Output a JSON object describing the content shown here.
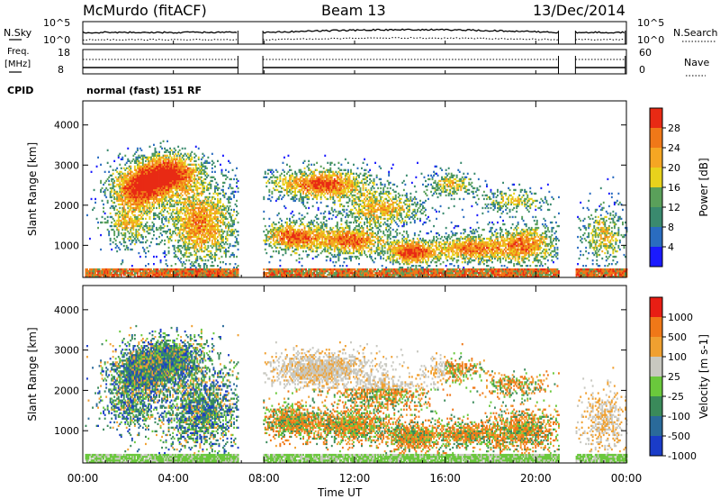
{
  "header": {
    "station": "McMurdo (fitACF)",
    "beam": "Beam 13",
    "date": "13/Dec/2014"
  },
  "noise_panel": {
    "left_label": "N.Sky",
    "left_ticks": [
      "10^5",
      "10^0"
    ],
    "right_label": "N.Search",
    "right_ticks": [
      "10^5",
      "10^0"
    ]
  },
  "freq_panel": {
    "left_label_1": "Freq.",
    "left_label_2": "[MHz]",
    "left_ticks": [
      "18",
      "8"
    ],
    "right_label": "Nave",
    "right_ticks": [
      "60",
      "0"
    ]
  },
  "cpid": {
    "label": "CPID",
    "value": "normal (fast) 151 RF"
  },
  "chart_data": [
    {
      "type": "heatmap",
      "panel": "power",
      "ylabel": "Slant Range [km]",
      "xlabel": "Time UT",
      "x_ticks": [
        "00:00",
        "04:00",
        "08:00",
        "12:00",
        "16:00",
        "20:00",
        "00:00"
      ],
      "y_ticks": [
        1000,
        2000,
        3000,
        4000
      ],
      "ylim": [
        200,
        4600
      ],
      "xlim_hours": [
        0,
        24
      ],
      "colorbar": {
        "label": "Power [dB]",
        "ticks": [
          4,
          8,
          12,
          16,
          20,
          24,
          28
        ],
        "range": [
          0,
          30
        ],
        "colors": [
          "#1a1aff",
          "#2a6cc0",
          "#3a8a6e",
          "#5aa05a",
          "#e8d21c",
          "#f5a623",
          "#f07818",
          "#e82a14"
        ]
      },
      "gaps_hours": [
        [
          6.85,
          7.95
        ],
        [
          21.0,
          21.75
        ]
      ]
    },
    {
      "type": "heatmap",
      "panel": "velocity",
      "ylabel": "Slant Range [km]",
      "xlabel": "Time UT",
      "x_ticks": [
        "00:00",
        "04:00",
        "08:00",
        "12:00",
        "16:00",
        "20:00",
        "00:00"
      ],
      "y_ticks": [
        1000,
        2000,
        3000,
        4000
      ],
      "ylim": [
        200,
        4600
      ],
      "xlim_hours": [
        0,
        24
      ],
      "colorbar": {
        "label": "Velocity [m s-1]",
        "tick_labels": [
          "1000",
          "500",
          "100",
          "25",
          "-25",
          "-100",
          "-500",
          "-1000"
        ],
        "colors": [
          "#1a3cc8",
          "#2a6a9a",
          "#3a8a5a",
          "#6ac83c",
          "#c8c8c0",
          "#f0a030",
          "#f07818",
          "#e81e14"
        ]
      },
      "gaps_hours": [
        [
          6.85,
          7.95
        ],
        [
          21.0,
          21.75
        ]
      ]
    }
  ]
}
